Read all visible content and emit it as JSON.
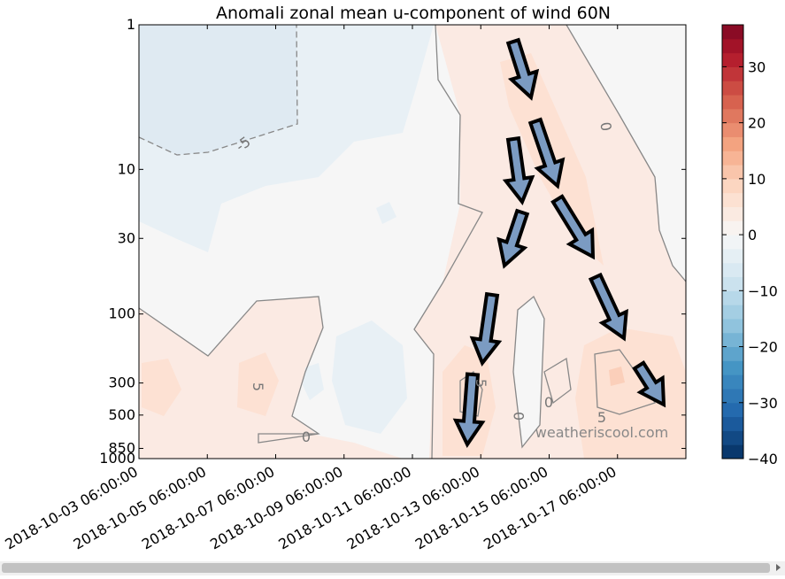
{
  "chart_data": {
    "type": "contourf",
    "title": "Anomali zonal mean u-component of wind 60N",
    "x_scale": "date",
    "xlim": [
      "2018-10-03 06:00:00",
      "2018-10-19 06:00:00"
    ],
    "xticks": [
      "2018-10-03 06:00:00",
      "2018-10-05 06:00:00",
      "2018-10-07 06:00:00",
      "2018-10-09 06:00:00",
      "2018-10-11 06:00:00",
      "2018-10-13 06:00:00",
      "2018-10-15 06:00:00",
      "2018-10-17 06:00:00"
    ],
    "y_scale": "log",
    "ylim": [
      1000,
      1
    ],
    "yticks": [
      1,
      10,
      30,
      100,
      300,
      500,
      850,
      1000
    ],
    "grid": false,
    "contour_labels": [
      "-5",
      "0",
      "5",
      "0",
      "5",
      "0",
      "0",
      "5"
    ],
    "watermark": "weatheriscool.com",
    "colorbar": {
      "lim": [
        -40,
        37.5
      ],
      "interval": 2.5,
      "ticks": [
        {
          "value": -40,
          "label": "−40"
        },
        {
          "value": -30,
          "label": "−30"
        },
        {
          "value": -20,
          "label": "−20"
        },
        {
          "value": -10,
          "label": "−10"
        },
        0,
        10,
        20,
        30
      ],
      "colormap": [
        "#053061",
        "#2166ac",
        "#4393c3",
        "#92c5de",
        "#d1e5f0",
        "#f7f7f7",
        "#fddbc7",
        "#f4a582",
        "#d6604d",
        "#b2182b",
        "#67001f"
      ]
    }
  }
}
